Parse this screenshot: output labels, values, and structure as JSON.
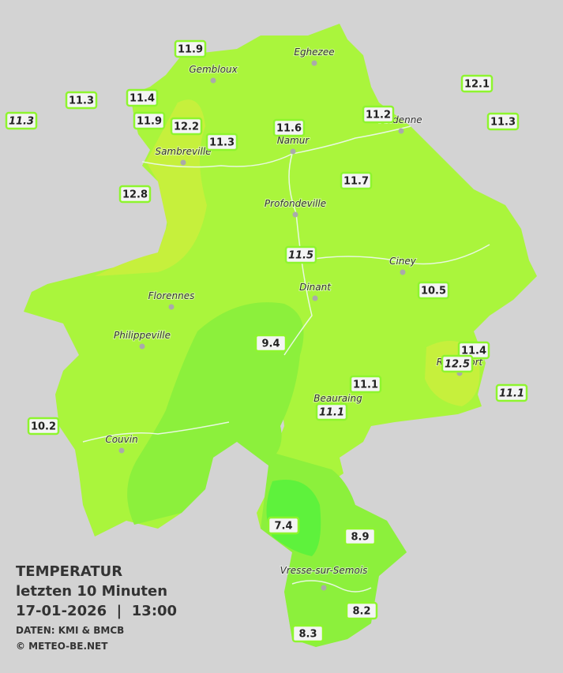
{
  "title": {
    "heading": "TEMPERATUR",
    "period": "letzten 10 Minuten",
    "datetime": "17-01-2026  |  13:00",
    "source": "DATEN: KMI & BMCB",
    "copyright": "© METEO-BE.NET"
  },
  "cities": [
    "Eghezee",
    "Gembloux",
    "Andenne",
    "Namur",
    "Sambreville",
    "Profondeville",
    "Ciney",
    "Dinant",
    "Florennes",
    "Philippeville",
    "Rochefort",
    "Beauraing",
    "Couvin",
    "Vresse-sur-Semois"
  ],
  "stations": [
    11.9,
    11.3,
    11.4,
    11.3,
    11.9,
    12.2,
    11.3,
    11.6,
    11.2,
    12.1,
    11.3,
    12.8,
    11.7,
    11.5,
    10.5,
    9.4,
    11.4,
    12.5,
    11.1,
    11.1,
    11.1,
    10.2,
    7.4,
    8.9,
    8.2,
    8.3
  ]
}
